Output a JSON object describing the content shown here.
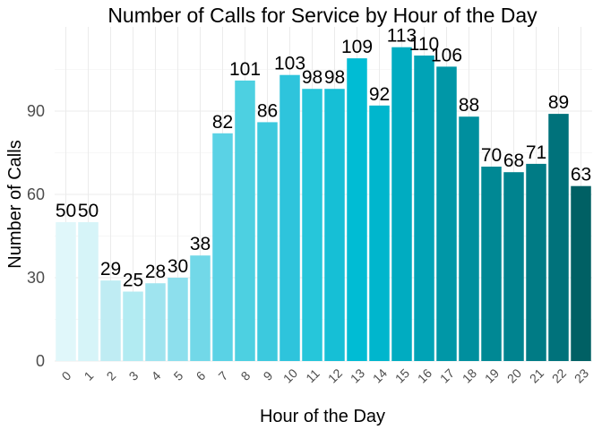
{
  "chart_data": {
    "type": "bar",
    "title": "Number of Calls for Service by Hour of the Day",
    "xlabel": "Hour of the Day",
    "ylabel": "Number of Calls",
    "categories": [
      "0",
      "1",
      "2",
      "3",
      "4",
      "5",
      "6",
      "7",
      "8",
      "9",
      "10",
      "11",
      "12",
      "13",
      "14",
      "15",
      "16",
      "17",
      "18",
      "19",
      "20",
      "21",
      "22",
      "23"
    ],
    "values": [
      50,
      50,
      29,
      25,
      28,
      30,
      38,
      82,
      101,
      86,
      103,
      98,
      98,
      109,
      92,
      113,
      110,
      106,
      88,
      70,
      68,
      71,
      89,
      63
    ],
    "data_labels": [
      "50",
      "50",
      "29",
      "25",
      "28",
      "30",
      "38",
      "82",
      "101",
      "86",
      "103",
      "98",
      "98",
      "109",
      "92",
      "113",
      "110",
      "106",
      "88",
      "70",
      "68",
      "71",
      "89",
      "63"
    ],
    "yticks": [
      0,
      30,
      60,
      90
    ],
    "ytick_labels": [
      "0",
      "30",
      "60",
      "90"
    ],
    "ylim": [
      -3,
      117
    ],
    "grid": true,
    "legend": "none",
    "colors": [
      "#e0f7fa",
      "#d6f4f8",
      "#bfecf3",
      "#b2ebf2",
      "#9fe4ef",
      "#8ddfed",
      "#72d8e8",
      "#5ad2e5",
      "#4dd0e1",
      "#3cc9de",
      "#2ec4dc",
      "#26c6da",
      "#16bfd6",
      "#00bcd4",
      "#00b6cd",
      "#00acc1",
      "#00a3b6",
      "#0097a7",
      "#008f9e",
      "#008894",
      "#00838f",
      "#007b85",
      "#00727b",
      "#006064"
    ]
  }
}
